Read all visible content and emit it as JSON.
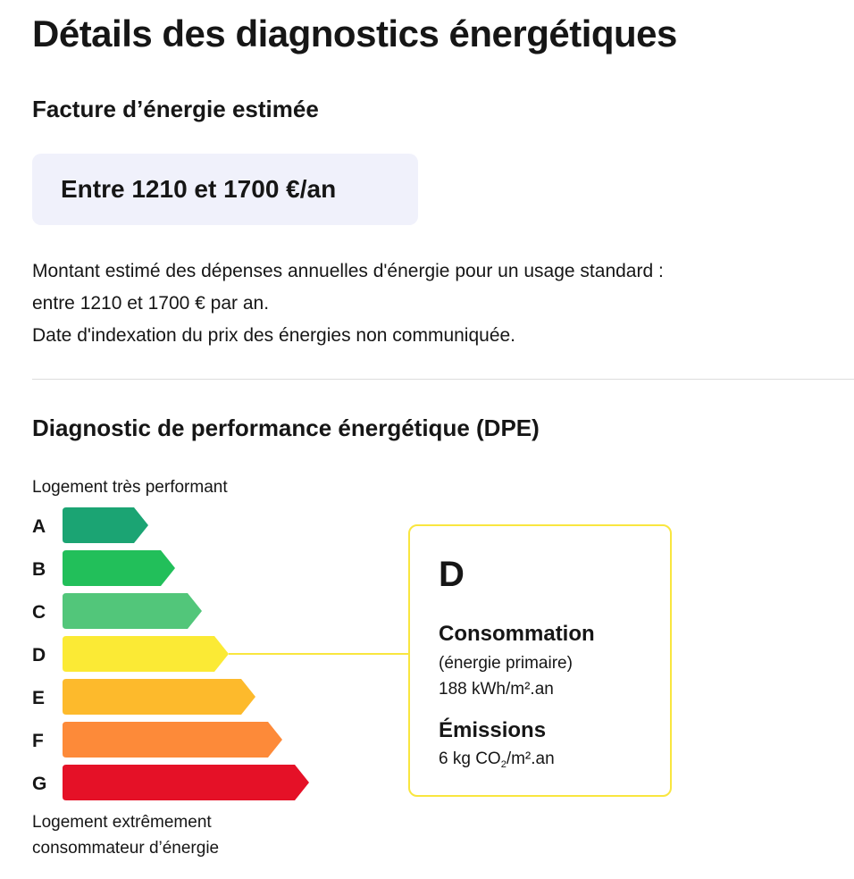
{
  "page": {
    "title": "Détails des diagnostics énergétiques"
  },
  "energy_bill": {
    "title": "Facture d’énergie estimée",
    "amount": "Entre 1210 et 1700 €/an",
    "description_lines": [
      "Montant estimé des dépenses annuelles d'énergie pour un usage standard :",
      "entre 1210 et 1700 € par an.",
      "Date d'indexation du prix des énergies non communiquée."
    ]
  },
  "dpe": {
    "title": "Diagnostic de performance énergétique (DPE)",
    "scale_top_label": "Logement très performant",
    "scale_bottom_label_lines": [
      "Logement extrêmement",
      "consommateur d’énergie"
    ],
    "classes": [
      {
        "letter": "A",
        "color": "#1ba473"
      },
      {
        "letter": "B",
        "color": "#22bf5a"
      },
      {
        "letter": "C",
        "color": "#52c67a"
      },
      {
        "letter": "D",
        "color": "#fbea35"
      },
      {
        "letter": "E",
        "color": "#fdba2c"
      },
      {
        "letter": "F",
        "color": "#fd8a39"
      },
      {
        "letter": "G",
        "color": "#e51127"
      }
    ],
    "current_class": "D",
    "connector_color": "#f9e63f",
    "result": {
      "letter": "D",
      "consumption_title": "Consommation",
      "consumption_subtitle": "(énergie primaire)",
      "consumption_value": "188 kWh/m².an",
      "emissions_title": "Émissions",
      "emissions_prefix": "6 kg CO",
      "emissions_subscript": "2",
      "emissions_suffix": "/m².an"
    }
  }
}
